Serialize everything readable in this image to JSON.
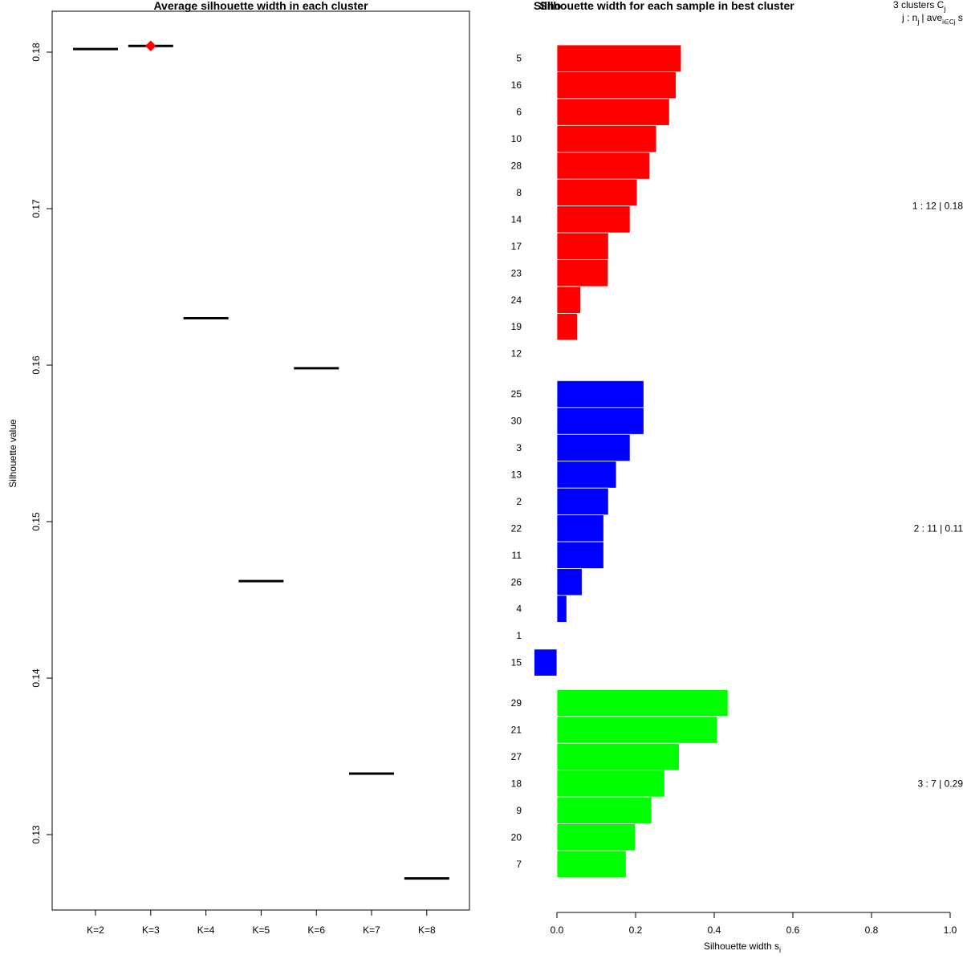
{
  "chart_data": [
    {
      "type": "line",
      "title": "Average silhouette width in each cluster",
      "xlabel": "",
      "ylabel": "Silhouette value",
      "categories": [
        "K=2",
        "K=3",
        "K=4",
        "K=5",
        "K=6",
        "K=7",
        "K=8"
      ],
      "values": [
        0.1802,
        0.1804,
        0.163,
        0.1462,
        0.1598,
        0.1339,
        0.1272
      ],
      "best_k": "K=3",
      "best_marker_color": "#ff0000",
      "ylim": [
        0.125,
        0.1825
      ],
      "yticks": [
        "0.13",
        "0.14",
        "0.15",
        "0.16",
        "0.17",
        "0.18"
      ],
      "grid": false
    },
    {
      "type": "bar",
      "orientation": "horizontal",
      "title": "Silhouette width for each sample in best cluster",
      "overlapping_title_fragment": "Silho",
      "xlabel": "Silhouette width s",
      "xlabel_subscript": "i",
      "xlim": [
        0.0,
        1.0
      ],
      "xticks": [
        "0.0",
        "0.2",
        "0.4",
        "0.6",
        "0.8",
        "1.0"
      ],
      "legend_header": {
        "line1": "3  clusters  C",
        "line1_sub": "j",
        "line2_a": "j :  n",
        "line2_a_sub": "j",
        "line2_b": "| ave",
        "line2_b_sub": "i∈Cj",
        "line2_c": "  s"
      },
      "clusters": [
        {
          "id": 1,
          "color": "#ff0000",
          "summary": "1 :  12  |  0.18",
          "samples": [
            "5",
            "16",
            "6",
            "10",
            "28",
            "8",
            "14",
            "17",
            "23",
            "24",
            "19",
            "12"
          ],
          "values": [
            0.316,
            0.303,
            0.286,
            0.253,
            0.236,
            0.204,
            0.186,
            0.131,
            0.13,
            0.06,
            0.052,
            0.0
          ]
        },
        {
          "id": 2,
          "color": "#0000ff",
          "summary": "2 :  11  |  0.11",
          "samples": [
            "25",
            "30",
            "3",
            "13",
            "2",
            "22",
            "11",
            "26",
            "4",
            "1",
            "15"
          ],
          "values": [
            0.221,
            0.221,
            0.186,
            0.151,
            0.131,
            0.119,
            0.119,
            0.064,
            0.025,
            0.0,
            -0.058
          ]
        },
        {
          "id": 3,
          "color": "#00ff00",
          "summary": "3 :  7  |  0.29",
          "samples": [
            "29",
            "21",
            "27",
            "18",
            "9",
            "20",
            "7"
          ],
          "values": [
            0.435,
            0.408,
            0.311,
            0.274,
            0.241,
            0.199,
            0.176
          ]
        }
      ]
    }
  ]
}
